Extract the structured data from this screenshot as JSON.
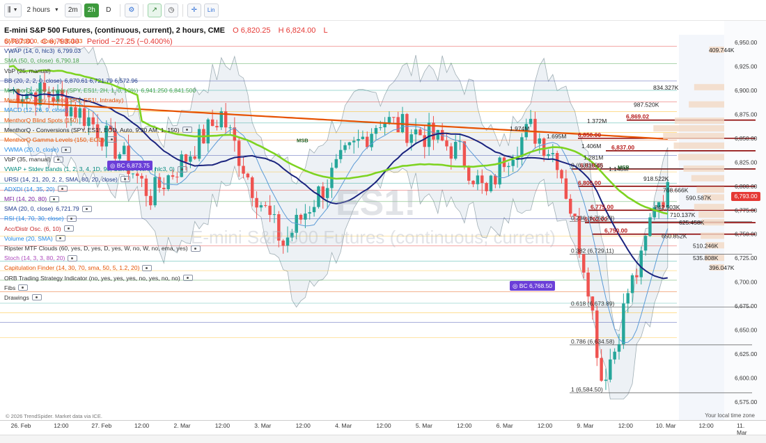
{
  "toolbar": {
    "interval_label": "2 hours",
    "buttons": [
      "2m",
      "2h",
      "D"
    ],
    "active_button": "2h",
    "scale_label": "Lin"
  },
  "title": {
    "symbol": "E-mini S&P 500 Futures, (continuous, current), 2 hours, CME",
    "open": "O 6,820.25",
    "high": "H 6,824.00",
    "low": "L 6,787.00",
    "close": "C 6,793.00",
    "period": "Period −27.25 (−0.400%)"
  },
  "legend": [
    {
      "label": "SMA (200, 0, close)",
      "value": "6,853.43",
      "color": "#e65100"
    },
    {
      "label": "VWAP (14, 0, hlc3)",
      "value": "6,799.03",
      "color": "#1e3a8a"
    },
    {
      "label": "SMA (50, 0, close)",
      "value": "6,790.18",
      "color": "#43a047"
    },
    {
      "label": "VbP (25, manual)",
      "value": "",
      "color": "#333333"
    },
    {
      "label": "BB (20, 2, 2, 0, close)",
      "value": "6,870.61  6,721.79  6,572.96",
      "color": "#1e3a8a"
    },
    {
      "label": "MenthorQ - Key Levels (SPY, ES1!, 2H, 1, 0, 10%)",
      "value": "6,941.250  6,841.500",
      "color": "#43a047"
    },
    {
      "label": "MenthorQ - Key Levels (SPY, ES1!, Intraday)",
      "value": "",
      "color": "#e65100"
    },
    {
      "label": "MACD (12, 26, 9, close)",
      "value": "",
      "color": "#1e88e5"
    },
    {
      "label": "MenthorQ Blind Spots (150)",
      "value": "",
      "color": "#e65100"
    },
    {
      "label": "MenthorQ - Conversions (SPY, ES1!, EOD, Auto, 9:30 AM, 1, 150)",
      "value": "",
      "color": "#222222"
    },
    {
      "label": "MenthorQ Gamma Levels (150, EOD)",
      "value": "",
      "color": "#e65100"
    },
    {
      "label": "VWMA (20, 0, close)",
      "value": "",
      "color": "#1e88e5"
    },
    {
      "label": "VbP (35, manual)",
      "value": "",
      "color": "#333333"
    },
    {
      "label": "VWAP + Stdev Bands (1, 2, 3, 4, 1D, 90, Current VWAP, hlc3, 0)",
      "value": "",
      "color": "#00897b"
    },
    {
      "label": "URSI (14, 21, 20, 2, 2, SMA, 80, 20, close)",
      "value": "",
      "color": "#1e3a8a"
    },
    {
      "label": "ADXDI (14, 35, 20)",
      "value": "",
      "color": "#1e88e5"
    },
    {
      "label": "MFI (14, 20, 80)",
      "value": "",
      "color": "#7b1fa2"
    },
    {
      "label": "SMA (20, 0, close)",
      "value": "6,721.79",
      "color": "#1e3a8a"
    },
    {
      "label": "RSI (14, 70, 30, close)",
      "value": "",
      "color": "#1e88e5"
    },
    {
      "label": "Acc/Distr Osc. (6, 10)",
      "value": "",
      "color": "#c62828"
    },
    {
      "label": "Volume (20, SMA)",
      "value": "",
      "color": "#1e88e5"
    },
    {
      "label": "Ripster MTF Clouds (60, yes, D, yes, D, yes, W, no, W, no, ema, yes)",
      "value": "",
      "color": "#333333"
    },
    {
      "label": "Stoch (14, 3, 3, 80, 20)",
      "value": "",
      "color": "#ab47bc"
    },
    {
      "label": "Capitulation Finder (14, 30, 70, sma, 50, 5, 1.2, 20)",
      "value": "",
      "color": "#e65100"
    },
    {
      "label": "ORB Trading Strategy Indicator (no, yes, yes, yes, no, yes, no, no)",
      "value": "",
      "color": "#333333"
    },
    {
      "label": "Fibs",
      "value": "",
      "color": "#333333"
    },
    {
      "label": "Drawings",
      "value": "",
      "color": "#333333"
    }
  ],
  "price_axis": [
    "6,950.00",
    "6,925.00",
    "6,900.00",
    "6,875.00",
    "6,850.00",
    "6,825.00",
    "6,800.00",
    "6,775.00",
    "6,750.00",
    "6,725.00",
    "6,700.00",
    "6,675.00",
    "6,650.00",
    "6,625.00",
    "6,600.00",
    "6,575.00"
  ],
  "current_price": "6,793.00",
  "time_axis": [
    "26. Feb",
    "12:00",
    "27. Feb",
    "12:00",
    "2. Mar",
    "12:00",
    "3. Mar",
    "12:00",
    "4. Mar",
    "12:00",
    "5. Mar",
    "12:00",
    "6. Mar",
    "12:00",
    "9. Mar",
    "12:00",
    "10. Mar",
    "12:00",
    "11. Mar"
  ],
  "volume_profile": [
    "409.744K",
    "834.327K",
    "987.520K",
    "1.372M",
    "1.974M",
    "1.695M",
    "1.406M",
    "1.281M",
    "1.148M",
    "918.522K",
    "768.666K",
    "590.587K",
    "842.503K",
    "710.137K",
    "625.458K",
    "650.852K",
    "510.246K",
    "535.808K",
    "396.047K"
  ],
  "key_levels": [
    "6,869.02",
    "6,850.00",
    "6,837.00",
    "6,818.05",
    "6,800.00",
    "6,775.00",
    "6,762.00",
    "6,750.00"
  ],
  "fib_labels": [
    "0 (6,818.50)",
    "0.236 (6,763.28)",
    "0.382 (6,729.11)",
    "0.618 (6,673.89)",
    "0.786 (6,634.58)",
    "1 (6,584.50)"
  ],
  "badges": [
    "BC 6,873.75",
    "BC 6,768.50"
  ],
  "markers": [
    "MSB",
    "MSB",
    "MSB"
  ],
  "watermark": {
    "symbol": "ES1!",
    "subtitle": "E-mini S&P 500 Futures (continuous, current)"
  },
  "credit": "© 2026 TrendSpider. Market data via ICE.",
  "timezone_label": "Your local time zone",
  "colors": {
    "up": "#26a69a",
    "down": "#ef5350",
    "sma200": "#e65100",
    "sma50": "#7ed321",
    "vwap": "#1a237e",
    "bb": "#b0bec5"
  }
}
